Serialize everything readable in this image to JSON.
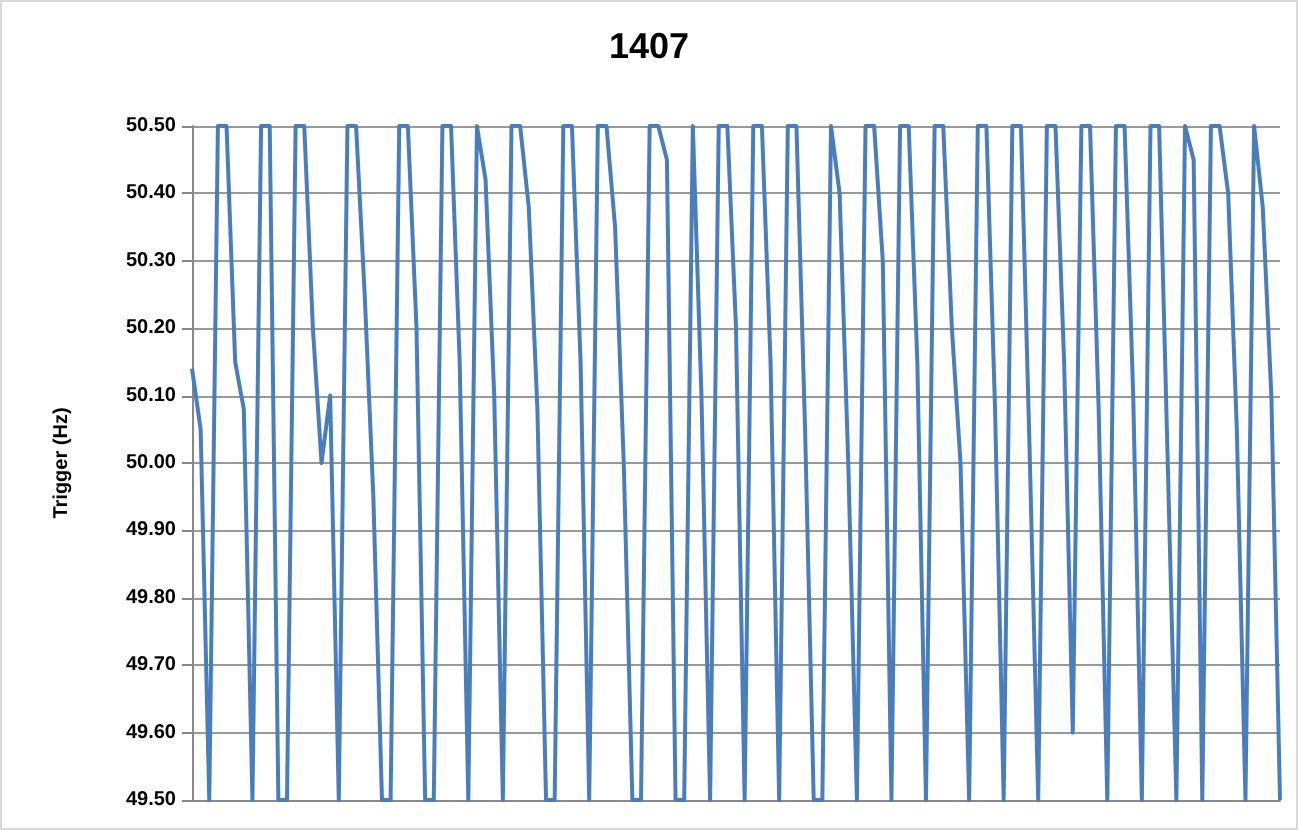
{
  "chart_data": {
    "type": "line",
    "title": "1407",
    "ylabel": "Trigger (Hz)",
    "categories": [
      null,
      null,
      null,
      null,
      null,
      null,
      null,
      null,
      null,
      null,
      null,
      null,
      null,
      null,
      null,
      null,
      null,
      null,
      null,
      null,
      null,
      null,
      null,
      null,
      null,
      null,
      null,
      null,
      null,
      null,
      null,
      null,
      null,
      null,
      null,
      null,
      null,
      null,
      null,
      null,
      null,
      null,
      null,
      null,
      null,
      null,
      null,
      null,
      null,
      null,
      null,
      null,
      null,
      null,
      null,
      null,
      null,
      null,
      null,
      null,
      null,
      null,
      null,
      null,
      null,
      null,
      null,
      null,
      null,
      null,
      null,
      null,
      null,
      null,
      null,
      null,
      null,
      null,
      null,
      null,
      null,
      null,
      null,
      null,
      null,
      null,
      null,
      null,
      null,
      null,
      null,
      null,
      null,
      null,
      null,
      null,
      null,
      null,
      null,
      null,
      null,
      null,
      null,
      null,
      null,
      null,
      null,
      null,
      null,
      null,
      null,
      null,
      null,
      null,
      null,
      null,
      null,
      null,
      null,
      null,
      null,
      null,
      null,
      null,
      null,
      null,
      null
    ],
    "series": [
      {
        "color": "#4a7ebb",
        "values": [
          50.14,
          50.05,
          49.5,
          50.5,
          50.5,
          50.15,
          50.08,
          49.5,
          50.5,
          50.5,
          49.5,
          49.5,
          50.5,
          50.5,
          50.2,
          50.0,
          50.1,
          49.5,
          50.5,
          50.5,
          50.25,
          49.95,
          49.5,
          49.5,
          50.5,
          50.5,
          50.2,
          49.5,
          49.5,
          50.5,
          50.5,
          50.15,
          49.5,
          50.5,
          50.42,
          50.1,
          49.5,
          50.5,
          50.5,
          50.38,
          50.08,
          49.5,
          49.5,
          50.5,
          50.5,
          50.15,
          49.5,
          50.5,
          50.5,
          50.35,
          50.0,
          49.5,
          49.5,
          50.5,
          50.5,
          50.45,
          49.5,
          49.5,
          50.5,
          50.1,
          49.5,
          50.5,
          50.5,
          50.2,
          49.5,
          50.5,
          50.5,
          50.15,
          49.5,
          50.5,
          50.5,
          50.05,
          49.5,
          49.5,
          50.5,
          50.4,
          50.0,
          49.5,
          50.5,
          50.5,
          50.3,
          49.5,
          50.5,
          50.5,
          50.15,
          49.5,
          50.5,
          50.5,
          50.2,
          50.0,
          49.5,
          50.5,
          50.5,
          50.08,
          49.5,
          50.5,
          50.5,
          50.02,
          49.5,
          50.5,
          50.5,
          50.15,
          49.6,
          50.5,
          50.5,
          50.08,
          49.5,
          50.5,
          50.5,
          50.1,
          49.5,
          50.5,
          50.5,
          50.0,
          49.5,
          50.5,
          50.45,
          49.5,
          50.5,
          50.5,
          50.4,
          50.05,
          49.5,
          50.5,
          50.38,
          50.1,
          49.5
        ]
      }
    ],
    "ylim": [
      49.5,
      50.5
    ],
    "yticks": [
      {
        "value": 49.5,
        "label": "49.50"
      },
      {
        "value": 49.6,
        "label": "49.60"
      },
      {
        "value": 49.7,
        "label": "49.70"
      },
      {
        "value": 49.8,
        "label": "49.80"
      },
      {
        "value": 49.9,
        "label": "49.90"
      },
      {
        "value": 50.0,
        "label": "50.00"
      },
      {
        "value": 50.1,
        "label": "50.10"
      },
      {
        "value": 50.2,
        "label": "50.20"
      },
      {
        "value": 50.3,
        "label": "50.30"
      },
      {
        "value": 50.4,
        "label": "50.40"
      },
      {
        "value": 50.5,
        "label": "50.50"
      }
    ],
    "grid": "y",
    "line_style": "solid",
    "tick_labels": "y"
  }
}
